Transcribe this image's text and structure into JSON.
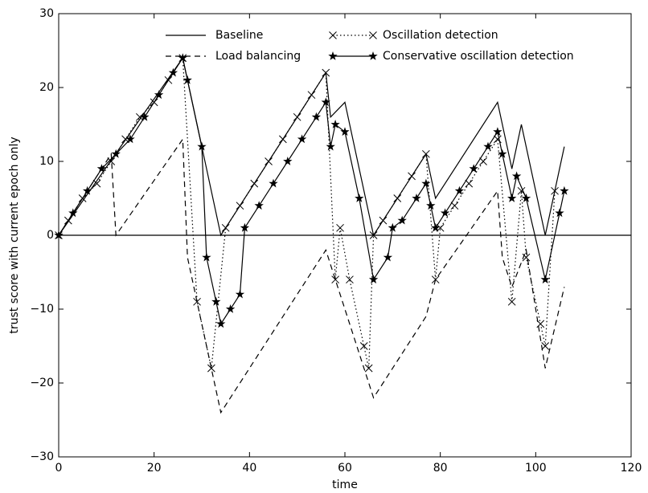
{
  "chart_data": {
    "type": "line",
    "xlabel": "time",
    "ylabel": "trust score with current epoch only",
    "xlim": [
      0,
      120
    ],
    "ylim": [
      -30,
      30
    ],
    "xticks": [
      0,
      20,
      40,
      60,
      80,
      100,
      120
    ],
    "yticks": [
      {
        "value": -30,
        "label": "−30"
      },
      {
        "value": -20,
        "label": "−20"
      },
      {
        "value": -10,
        "label": "−10"
      },
      0,
      10,
      20,
      30
    ],
    "zero_line": true,
    "series": [
      {
        "name": "Baseline",
        "color": "#000000",
        "style": "solid",
        "marker": "none",
        "x": [
          0,
          26,
          30,
          34,
          56,
          57,
          60,
          66,
          77,
          79,
          92,
          95,
          97,
          102,
          106
        ],
        "values": [
          0,
          24,
          12,
          0,
          22,
          16,
          18,
          0,
          11,
          5,
          18,
          9,
          15,
          0,
          12
        ]
      },
      {
        "name": "Load balancing",
        "color": "#000000",
        "style": "dashed",
        "marker": "none",
        "x": [
          0,
          11,
          12,
          26,
          27,
          34,
          56,
          58,
          66,
          77,
          79,
          92,
          93,
          95,
          98,
          102,
          106
        ],
        "values": [
          0,
          11,
          0,
          13,
          -3,
          -24,
          -2,
          -6,
          -22,
          -11,
          -6,
          6,
          -3,
          -7,
          -2,
          -18,
          -7
        ]
      },
      {
        "name": "Oscillation detection",
        "color": "#000000",
        "style": "dotted",
        "marker": "x",
        "x": [
          0,
          2,
          5,
          8,
          11,
          14,
          17,
          20,
          23,
          26,
          29,
          32,
          35,
          38,
          41,
          44,
          47,
          50,
          53,
          56,
          58,
          59,
          61,
          64,
          65,
          66,
          68,
          71,
          74,
          77,
          79,
          80,
          83,
          86,
          89,
          92,
          95,
          97,
          98,
          101,
          102,
          104
        ],
        "values": [
          0,
          2,
          5,
          7,
          10,
          13,
          16,
          18,
          21,
          24,
          -9,
          -18,
          1,
          4,
          7,
          10,
          13,
          16,
          19,
          22,
          -6,
          1,
          -6,
          -15,
          -18,
          0,
          2,
          5,
          8,
          11,
          -6,
          1,
          4,
          7,
          10,
          13,
          -9,
          6,
          -3,
          -12,
          -15,
          6
        ]
      },
      {
        "name": "Conservative oscillation detection",
        "color": "#000000",
        "style": "solid",
        "marker": "star",
        "x": [
          0,
          3,
          6,
          9,
          12,
          15,
          18,
          21,
          24,
          26,
          27,
          30,
          31,
          33,
          34,
          36,
          38,
          39,
          42,
          45,
          48,
          51,
          54,
          56,
          57,
          58,
          60,
          63,
          66,
          69,
          70,
          72,
          75,
          77,
          78,
          79,
          81,
          84,
          87,
          90,
          92,
          93,
          95,
          96,
          98,
          102,
          105,
          106
        ],
        "values": [
          0,
          3,
          6,
          9,
          11,
          13,
          16,
          19,
          22,
          24,
          21,
          12,
          -3,
          -9,
          -12,
          -10,
          -8,
          1,
          4,
          7,
          10,
          13,
          16,
          18,
          12,
          15,
          14,
          5,
          -6,
          -3,
          1,
          2,
          5,
          7,
          4,
          1,
          3,
          6,
          9,
          12,
          14,
          11,
          5,
          8,
          5,
          -6,
          3,
          6
        ]
      }
    ]
  }
}
